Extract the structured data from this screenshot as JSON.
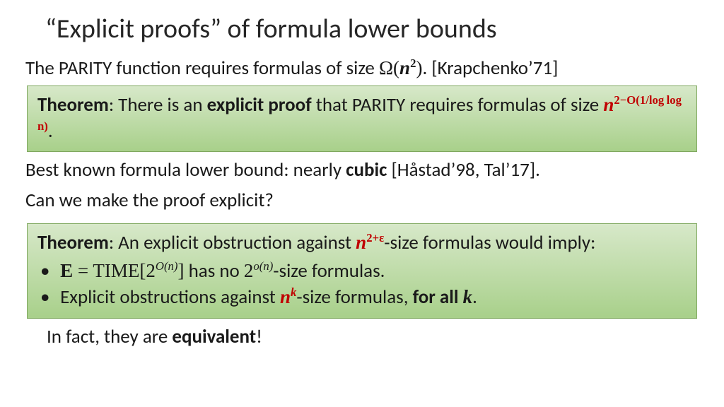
{
  "colors": {
    "bg": "#ffffff",
    "text": "#1a1a1a",
    "title": "#262626",
    "red": "#c00000",
    "box_top": "#d7e8c9",
    "box_bottom": "#a8d08a",
    "box_border": "#7fa85f"
  },
  "fonts": {
    "body": "Calibri",
    "math": "Cambria Math",
    "title_size": 38,
    "body_size": 27
  },
  "title": "“Explicit proofs” of formula lower bounds",
  "parity_line": {
    "prefix": "The PARITY function requires formulas of size ",
    "omega": "Ω(",
    "n": "n",
    "exp": "2",
    "close": ")",
    "suffix": ". [Krapchenko’71]"
  },
  "theorem1": {
    "label": "Theorem",
    "part1": ": There is an ",
    "bold1": "explicit proof",
    "part2": " that PARITY requires formulas of size ",
    "base": "n",
    "exp": "2−O(1/log log n)",
    "period": "."
  },
  "middle": {
    "line1a": "Best known formula lower bound: nearly ",
    "line1b": "cubic",
    "line1c": " [Håstad’98, Tal’17].",
    "line2": "Can we make the proof explicit?"
  },
  "theorem2": {
    "label": "Theorem",
    "lead_a": ": An explicit obstruction against ",
    "n": "n",
    "exp1": "2+ε",
    "lead_b": "-size formulas would imply:",
    "bullet1": {
      "E": "E",
      "eq": " = ",
      "time": "TIME",
      "br_open": "[",
      "two_a": "2",
      "On": "O(n)",
      "br_close": "]",
      "mid": " has no ",
      "two_b": "2",
      "on_small": "o(n)",
      "tail": "-size formulas."
    },
    "bullet2": {
      "a": "Explicit obstructions against ",
      "n": "n",
      "k": "k",
      "b": "-size formulas, ",
      "c": "for all ",
      "kvar": "k",
      "d": "."
    }
  },
  "footer": {
    "a": "In fact, they are ",
    "b": "equivalent",
    "c": "!"
  }
}
